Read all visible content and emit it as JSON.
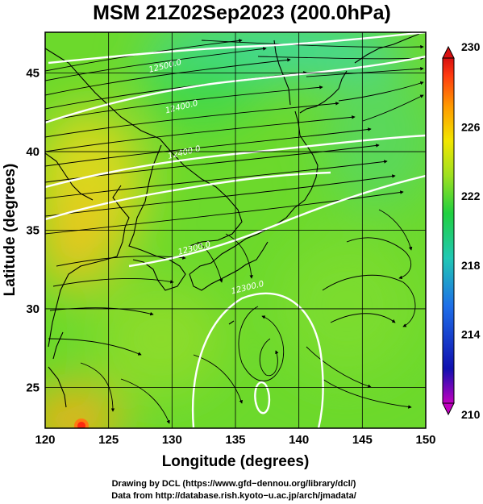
{
  "chart_data": {
    "type": "heatmap",
    "title": "MSM 21Z02Sep2023 (200.0hPa)",
    "xlabel": "Longitude (degrees)",
    "ylabel": "Latitude  (degrees)",
    "xlim": [
      120,
      150
    ],
    "ylim": [
      22.4,
      47.6
    ],
    "xticks": [
      "120",
      "125",
      "130",
      "135",
      "140",
      "145",
      "150"
    ],
    "yticks": [
      "25",
      "30",
      "35",
      "40",
      "45"
    ],
    "grid": true,
    "colorbar": {
      "min": 210,
      "max": 230,
      "ticks": [
        "210",
        "214",
        "218",
        "222",
        "226",
        "230"
      ],
      "colors": [
        "#c000c0",
        "#1010b0",
        "#1e6ee8",
        "#20c8b4",
        "#20d040",
        "#9ee020",
        "#f2e600",
        "#ff9a00",
        "#ff3a10",
        "#d81010"
      ]
    },
    "contours": [
      {
        "label": "12500.0",
        "lon": 129.5,
        "lat": 45.3
      },
      {
        "label": "12400.0",
        "lon": 130.8,
        "lat": 42.7
      },
      {
        "label": "12400.0",
        "lon": 131.0,
        "lat": 39.8
      },
      {
        "label": "12300.0",
        "lon": 131.8,
        "lat": 33.7
      },
      {
        "label": "12300.0",
        "lon": 136.0,
        "lat": 31.2
      }
    ],
    "field_features": [
      {
        "kind": "warm",
        "lon": 123.5,
        "lat": 23.2,
        "value": 229
      },
      {
        "kind": "warm",
        "lon": 123.5,
        "lat": 39.5,
        "value": 226
      },
      {
        "kind": "cool",
        "lon": 139.0,
        "lat": 47.5,
        "value": 220
      }
    ],
    "wind": "streamlines"
  },
  "credits": {
    "line1": "Drawing by DCL (https://www.gfd−dennou.org/library/dcl/)",
    "line2": "Data from http://database.rish.kyoto−u.ac.jp/arch/jmadata/"
  }
}
